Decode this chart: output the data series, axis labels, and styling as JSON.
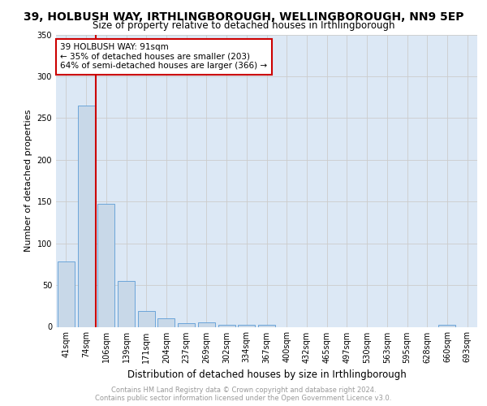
{
  "title": "39, HOLBUSH WAY, IRTHLINGBOROUGH, WELLINGBOROUGH, NN9 5EP",
  "subtitle": "Size of property relative to detached houses in Irthlingborough",
  "xlabel": "Distribution of detached houses by size in Irthlingborough",
  "ylabel": "Number of detached properties",
  "bar_color": "#c8d8e8",
  "bar_edge_color": "#5b9bd5",
  "categories": [
    "41sqm",
    "74sqm",
    "106sqm",
    "139sqm",
    "171sqm",
    "204sqm",
    "237sqm",
    "269sqm",
    "302sqm",
    "334sqm",
    "367sqm",
    "400sqm",
    "432sqm",
    "465sqm",
    "497sqm",
    "530sqm",
    "563sqm",
    "595sqm",
    "628sqm",
    "660sqm",
    "693sqm"
  ],
  "values": [
    78,
    265,
    147,
    55,
    19,
    10,
    4,
    5,
    2,
    2,
    2,
    0,
    0,
    0,
    0,
    0,
    0,
    0,
    0,
    2,
    0
  ],
  "vline_color": "#cc0000",
  "annotation_text": "39 HOLBUSH WAY: 91sqm\n← 35% of detached houses are smaller (203)\n64% of semi-detached houses are larger (366) →",
  "annotation_box_color": "#ffffff",
  "annotation_box_edge": "#cc0000",
  "ylim": [
    0,
    350
  ],
  "yticks": [
    0,
    50,
    100,
    150,
    200,
    250,
    300,
    350
  ],
  "grid_color": "#cccccc",
  "bg_color": "#dce8f5",
  "footer_text": "Contains HM Land Registry data © Crown copyright and database right 2024.\nContains public sector information licensed under the Open Government Licence v3.0.",
  "title_fontsize": 10,
  "subtitle_fontsize": 8.5,
  "xlabel_fontsize": 8.5,
  "ylabel_fontsize": 8,
  "tick_fontsize": 7,
  "annotation_fontsize": 7.5,
  "footer_fontsize": 6
}
